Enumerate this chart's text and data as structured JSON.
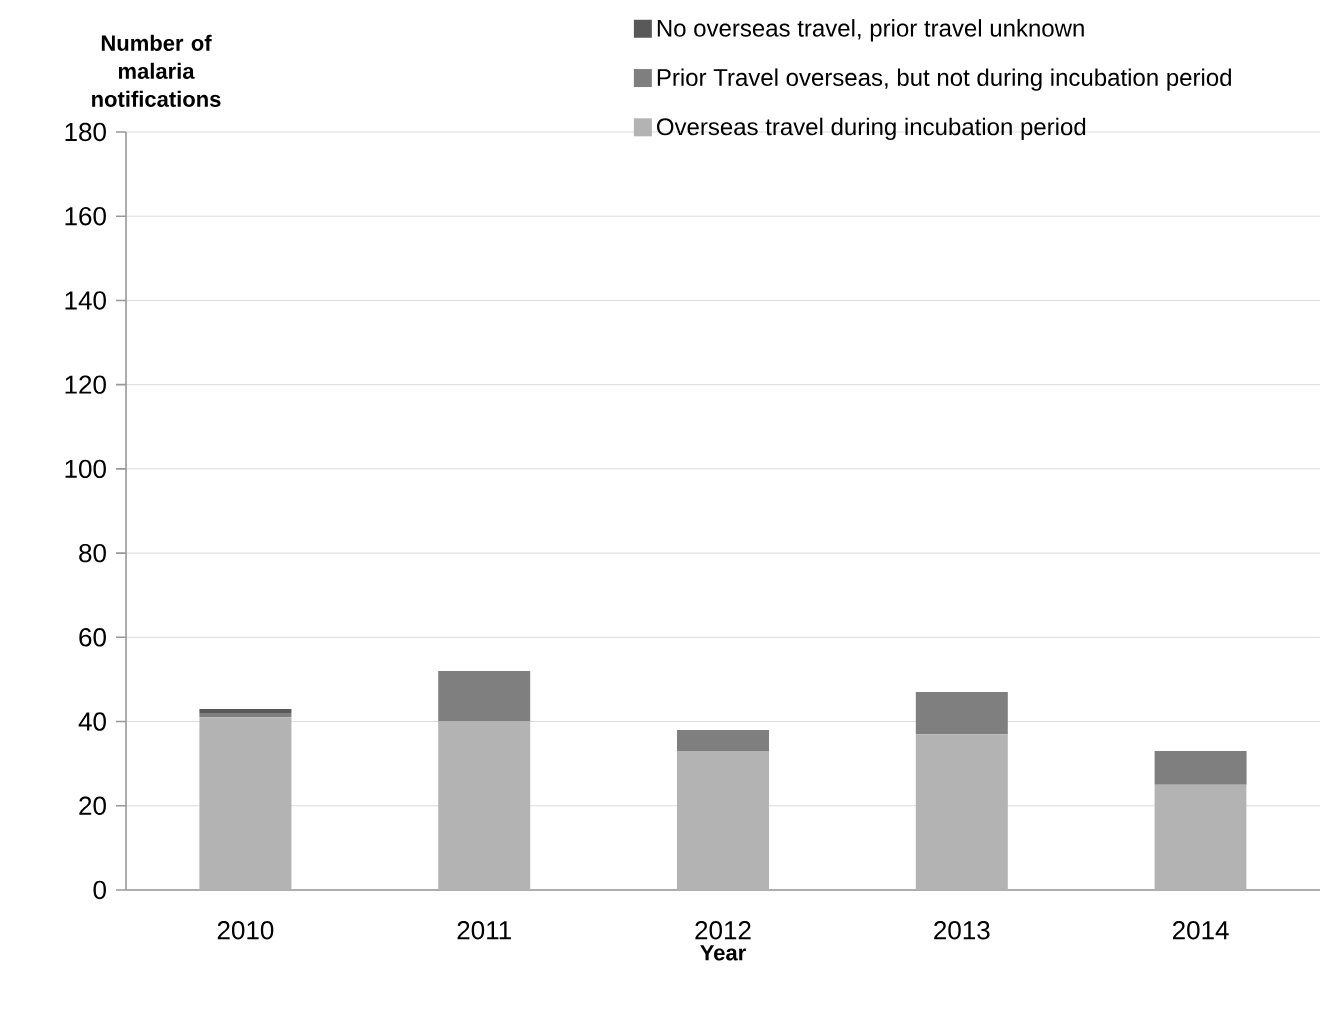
{
  "chart_data": {
    "type": "bar",
    "stacked": true,
    "xlabel": "Year",
    "ylabel": "Number of malaria notifications",
    "categories": [
      "2010",
      "2011",
      "2012",
      "2013",
      "2014"
    ],
    "series": [
      {
        "name": "Overseas travel during incubation period",
        "color": "#b3b3b3",
        "values": [
          41,
          40,
          33,
          37,
          25
        ]
      },
      {
        "name": "Prior Travel overseas, but not during incubation period",
        "color": "#7f7f7f",
        "values": [
          1,
          12,
          5,
          10,
          8
        ]
      },
      {
        "name": "No overseas travel, prior travel unknown",
        "color": "#595959",
        "values": [
          1,
          0,
          0,
          0,
          0
        ]
      }
    ],
    "ylim": [
      0,
      180
    ],
    "yticks": [
      0,
      20,
      40,
      60,
      80,
      100,
      120,
      140,
      160,
      180
    ],
    "grid": "y",
    "legend": "top right"
  }
}
